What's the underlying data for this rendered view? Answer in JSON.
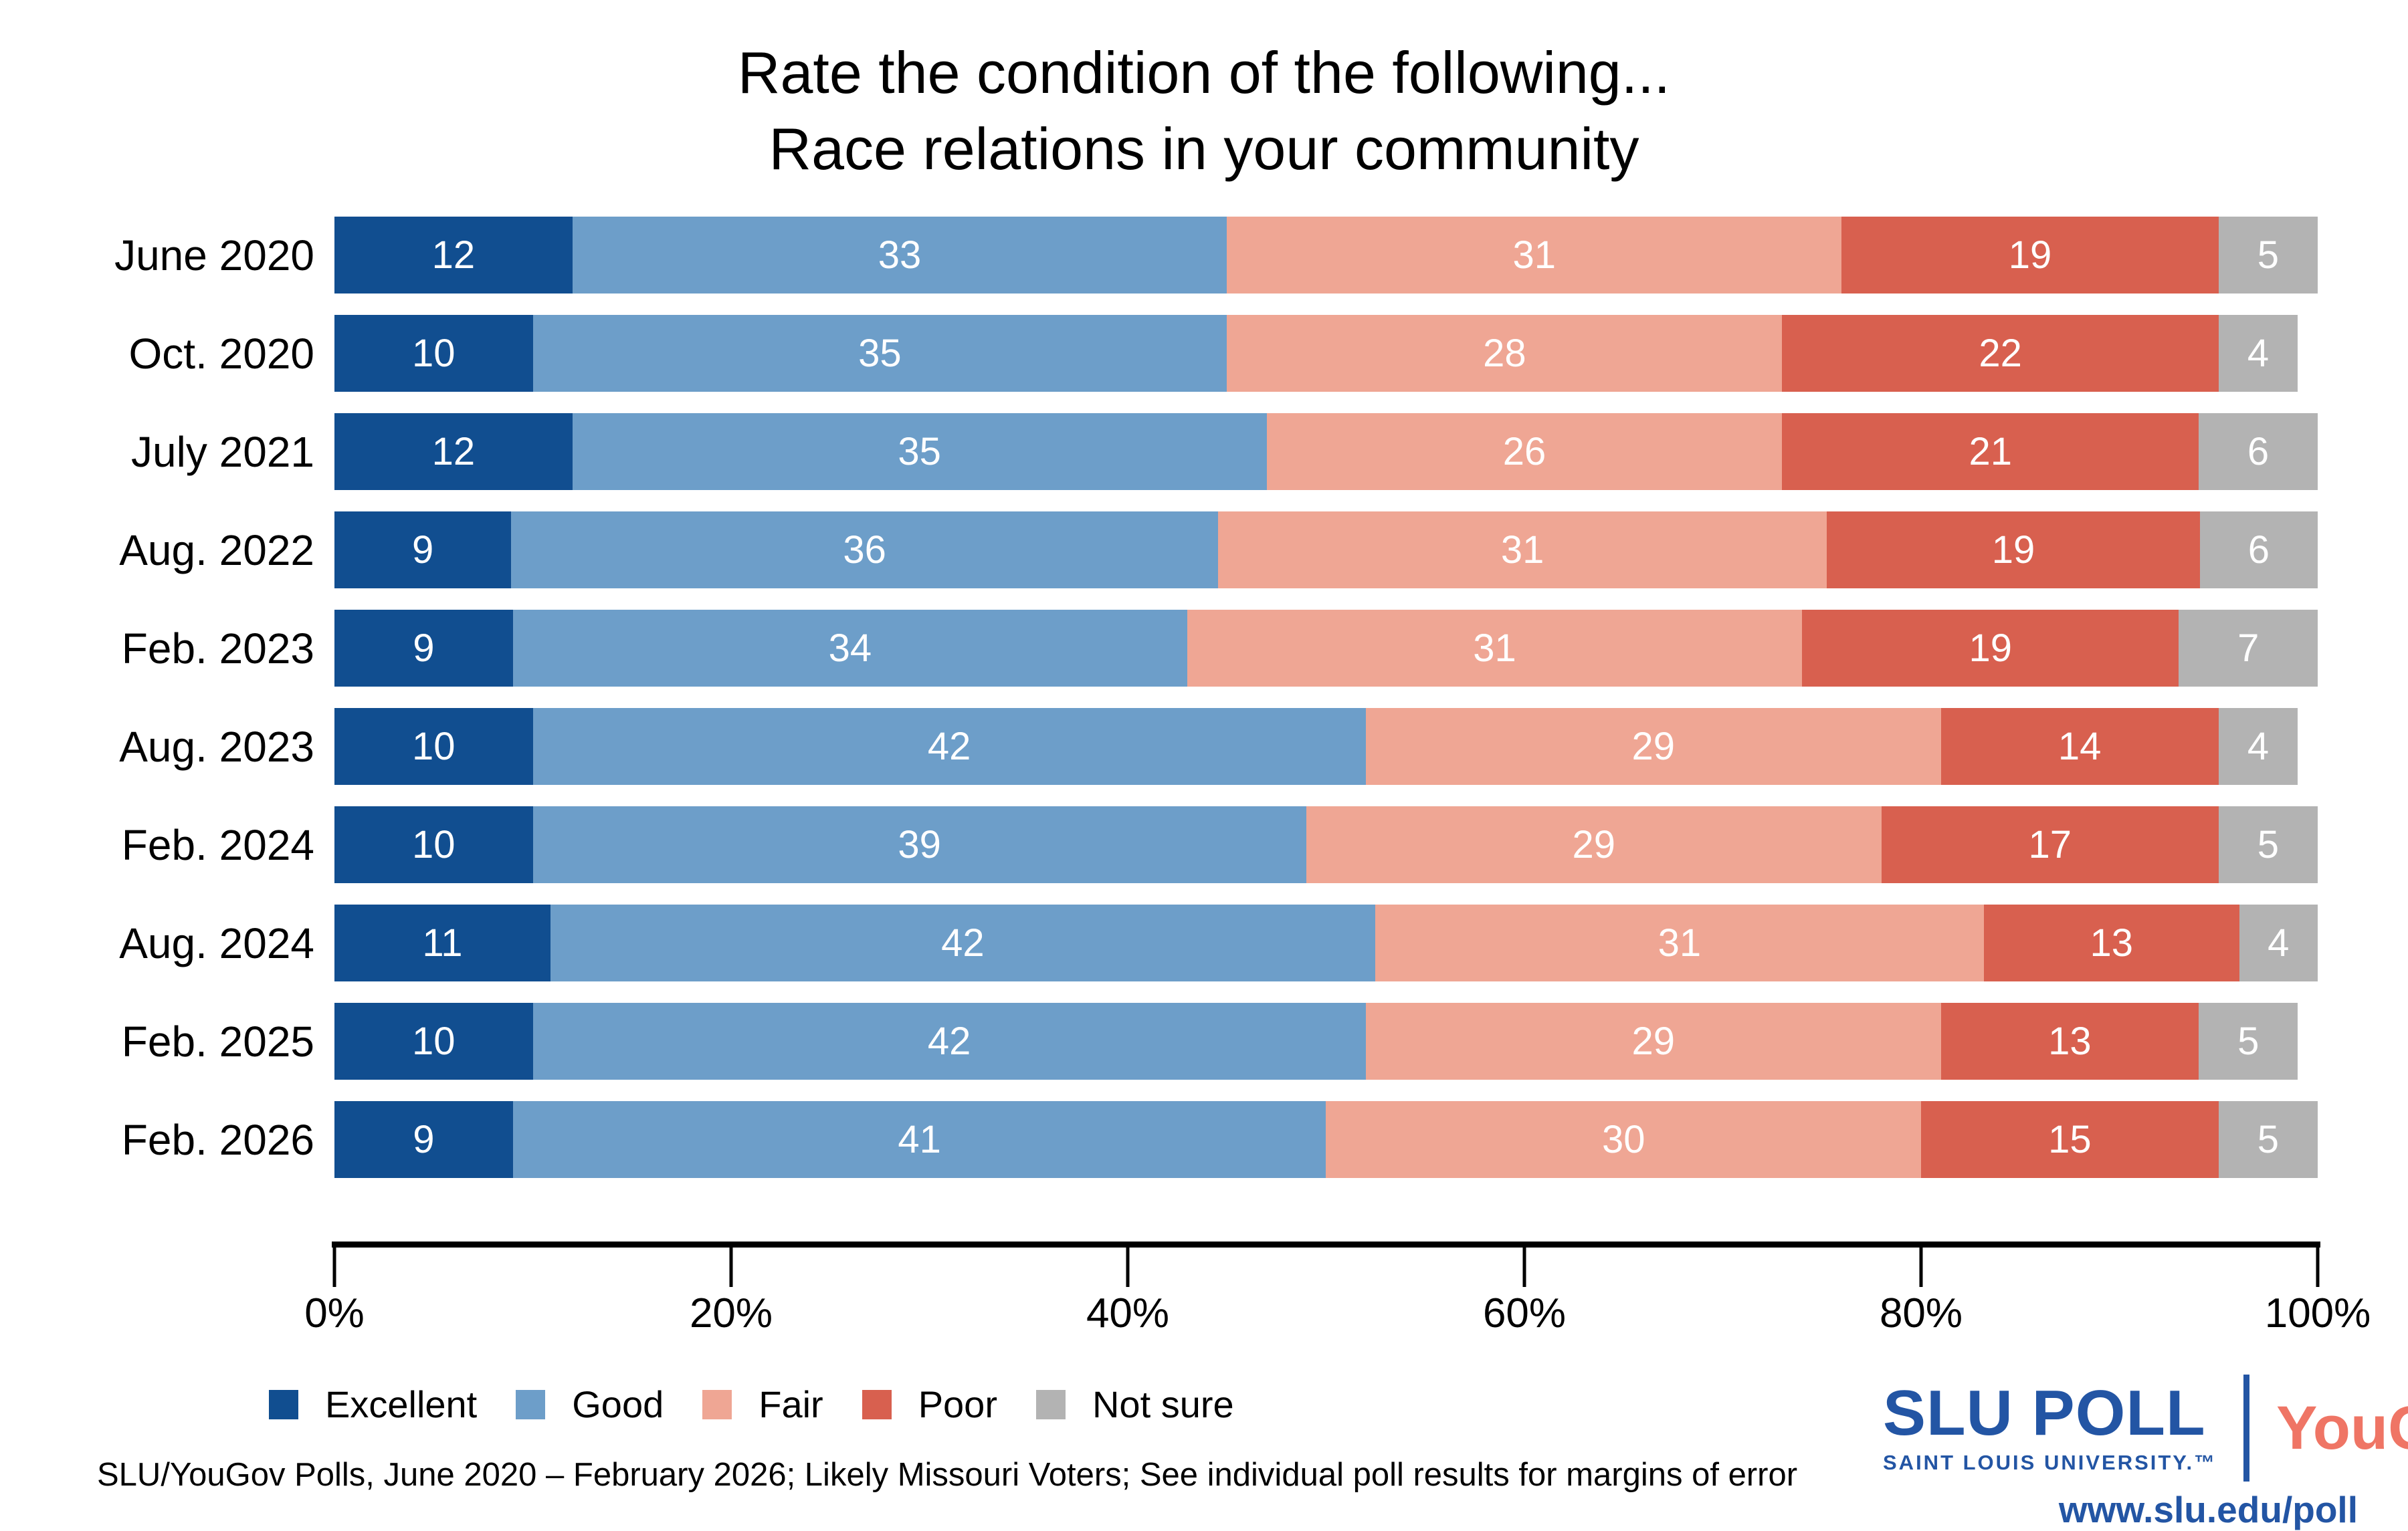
{
  "chart_data": {
    "type": "bar",
    "orientation": "horizontal-stacked",
    "title": "Rate the condition of the following...",
    "subtitle": "Race relations in your community",
    "categories": [
      "June 2020",
      "Oct. 2020",
      "July 2021",
      "Aug. 2022",
      "Feb. 2023",
      "Aug. 2023",
      "Feb. 2024",
      "Aug. 2024",
      "Feb. 2025",
      "Feb. 2026"
    ],
    "series": [
      {
        "name": "Excellent",
        "color": "#114E90",
        "values": [
          12,
          10,
          12,
          9,
          9,
          10,
          10,
          11,
          10,
          9
        ]
      },
      {
        "name": "Good",
        "color": "#6D9EC9",
        "values": [
          33,
          35,
          35,
          36,
          34,
          42,
          39,
          42,
          42,
          41
        ]
      },
      {
        "name": "Fair",
        "color": "#EFA694",
        "values": [
          31,
          28,
          26,
          31,
          31,
          29,
          29,
          31,
          29,
          30
        ]
      },
      {
        "name": "Poor",
        "color": "#D8604F",
        "values": [
          19,
          22,
          21,
          19,
          19,
          14,
          17,
          13,
          13,
          15
        ]
      },
      {
        "name": "Not sure",
        "color": "#B3B3B3",
        "values": [
          5,
          4,
          6,
          6,
          7,
          4,
          5,
          4,
          5,
          5
        ]
      }
    ],
    "x_axis": {
      "range": [
        0,
        100
      ],
      "tick_labels": [
        "0%",
        "20%",
        "40%",
        "60%",
        "80%",
        "100%"
      ],
      "grid": false
    },
    "legend_position": "bottom-left",
    "value_labels": "inside-white"
  },
  "footer": {
    "source": "SLU/YouGov Polls, June 2020 – February 2026; Likely Missouri Voters; See individual poll results for margins of error"
  },
  "branding": {
    "slu_word": "SLU",
    "poll_word": " POLL",
    "slu_subtitle": "SAINT LOUIS UNIVERSITY.",
    "slu_tm": "™",
    "yougov": "YouGov",
    "yougov_reg": "®",
    "url": "www.slu.edu/poll",
    "slu_blue": "#2355A4",
    "yougov_coral": "#EF7565"
  }
}
